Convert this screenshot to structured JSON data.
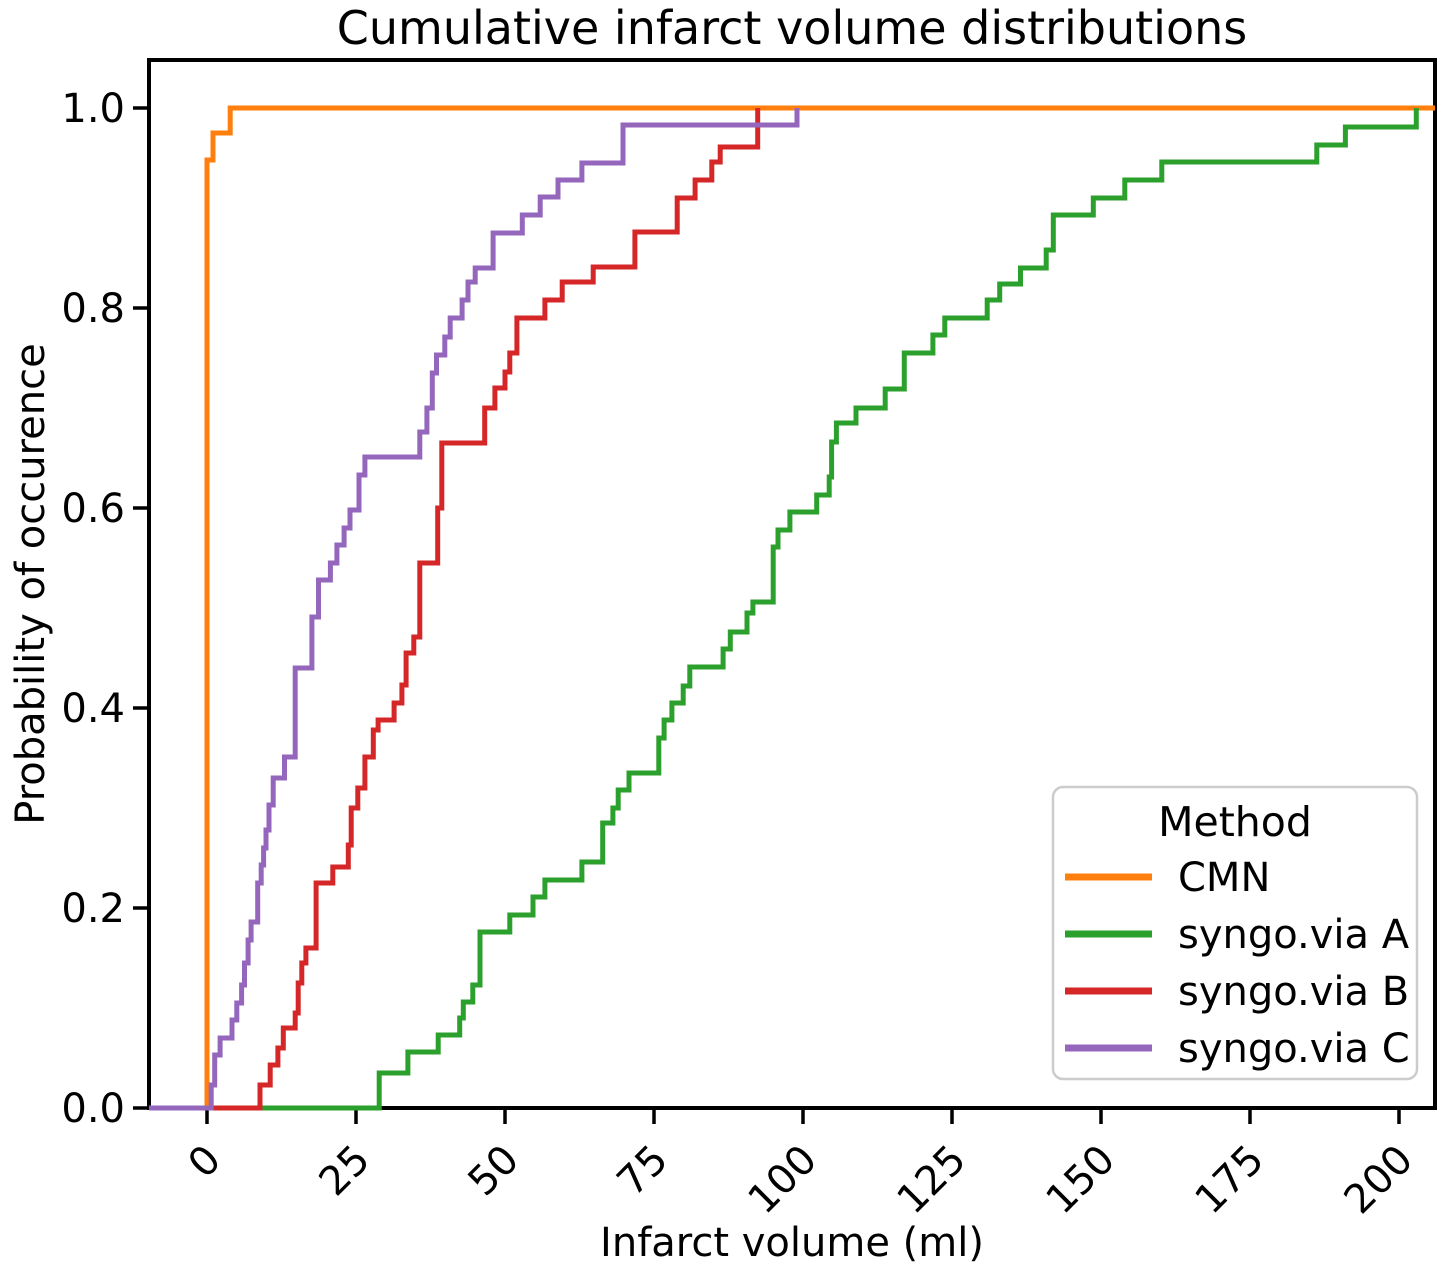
{
  "title": "Cumulative infarct volume distributions",
  "x_axis": {
    "label": "Infarct volume (ml)",
    "ticks": [
      0,
      25,
      50,
      75,
      100,
      125,
      150,
      175,
      200
    ]
  },
  "y_axis": {
    "label": "Probability of occurence",
    "ticks": [
      "0.0",
      "0.2",
      "0.4",
      "0.6",
      "0.8",
      "1.0"
    ]
  },
  "legend": {
    "title": "Method",
    "entries": [
      {
        "label": "CMN",
        "color": "#ff7f0e"
      },
      {
        "label": "syngo.via A",
        "color": "#2ca02c"
      },
      {
        "label": "syngo.via B",
        "color": "#d62728"
      },
      {
        "label": "syngo.via C",
        "color": "#9467bd"
      }
    ]
  },
  "chart_data": {
    "type": "line",
    "subtype": "ecdf-step",
    "title": "Cumulative infarct volume distributions",
    "xlabel": "Infarct volume (ml)",
    "ylabel": "Probability of occurence",
    "xlim": [
      -9.7,
      206
    ],
    "ylim": [
      0,
      1.048
    ],
    "grid": false,
    "legend_position": "lower right",
    "series": [
      {
        "name": "CMN",
        "color": "#ff7f0e",
        "extend_right": true,
        "steps": [
          [
            0,
            0.948
          ],
          [
            1.0,
            0.975
          ],
          [
            3.9,
            1.0
          ]
        ]
      },
      {
        "name": "syngo.via A",
        "color": "#2ca02c",
        "extend_right": false,
        "steps": [
          [
            28.9,
            0.035
          ],
          [
            33.7,
            0.056
          ],
          [
            38.8,
            0.073
          ],
          [
            42.4,
            0.09
          ],
          [
            43.0,
            0.106
          ],
          [
            44.6,
            0.123
          ],
          [
            45.8,
            0.176
          ],
          [
            50.8,
            0.193
          ],
          [
            54.7,
            0.211
          ],
          [
            56.7,
            0.228
          ],
          [
            62.9,
            0.246
          ],
          [
            66.4,
            0.285
          ],
          [
            68.1,
            0.3
          ],
          [
            69.0,
            0.318
          ],
          [
            70.8,
            0.335
          ],
          [
            75.8,
            0.37
          ],
          [
            76.7,
            0.388
          ],
          [
            78.0,
            0.405
          ],
          [
            79.9,
            0.422
          ],
          [
            81.0,
            0.441
          ],
          [
            86.6,
            0.459
          ],
          [
            87.8,
            0.476
          ],
          [
            90.6,
            0.495
          ],
          [
            91.6,
            0.506
          ],
          [
            95.0,
            0.561
          ],
          [
            95.8,
            0.578
          ],
          [
            97.8,
            0.596
          ],
          [
            102.3,
            0.613
          ],
          [
            104.4,
            0.631
          ],
          [
            104.8,
            0.666
          ],
          [
            105.6,
            0.685
          ],
          [
            108.9,
            0.7
          ],
          [
            113.8,
            0.719
          ],
          [
            117.0,
            0.755
          ],
          [
            121.8,
            0.773
          ],
          [
            123.8,
            0.79
          ],
          [
            130.9,
            0.808
          ],
          [
            133.0,
            0.824
          ],
          [
            136.5,
            0.84
          ],
          [
            140.8,
            0.858
          ],
          [
            142.0,
            0.893
          ],
          [
            148.7,
            0.91
          ],
          [
            154.0,
            0.928
          ],
          [
            160.2,
            0.946
          ],
          [
            186.2,
            0.963
          ],
          [
            191.0,
            0.981
          ],
          [
            202.9,
            1.0
          ]
        ]
      },
      {
        "name": "syngo.via B",
        "color": "#d62728",
        "extend_right": false,
        "steps": [
          [
            8.9,
            0.023
          ],
          [
            10.6,
            0.043
          ],
          [
            11.9,
            0.06
          ],
          [
            12.8,
            0.08
          ],
          [
            14.8,
            0.095
          ],
          [
            15.3,
            0.125
          ],
          [
            15.9,
            0.145
          ],
          [
            16.6,
            0.16
          ],
          [
            18.3,
            0.225
          ],
          [
            21.1,
            0.241
          ],
          [
            23.7,
            0.263
          ],
          [
            24.2,
            0.3
          ],
          [
            25.3,
            0.32
          ],
          [
            26.5,
            0.351
          ],
          [
            27.9,
            0.378
          ],
          [
            28.7,
            0.388
          ],
          [
            31.4,
            0.405
          ],
          [
            32.7,
            0.423
          ],
          [
            33.4,
            0.455
          ],
          [
            34.7,
            0.471
          ],
          [
            35.7,
            0.545
          ],
          [
            38.7,
            0.6
          ],
          [
            39.4,
            0.665
          ],
          [
            46.6,
            0.7
          ],
          [
            48.3,
            0.72
          ],
          [
            50.0,
            0.736
          ],
          [
            50.8,
            0.755
          ],
          [
            52.0,
            0.79
          ],
          [
            56.7,
            0.808
          ],
          [
            59.6,
            0.826
          ],
          [
            64.8,
            0.841
          ],
          [
            71.8,
            0.876
          ],
          [
            78.9,
            0.91
          ],
          [
            81.9,
            0.928
          ],
          [
            84.7,
            0.946
          ],
          [
            86.1,
            0.961
          ],
          [
            92.4,
            1.0
          ]
        ]
      },
      {
        "name": "syngo.via C",
        "color": "#9467bd",
        "extend_right": false,
        "steps": [
          [
            0.7,
            0.023
          ],
          [
            1.3,
            0.053
          ],
          [
            2.2,
            0.07
          ],
          [
            4.2,
            0.088
          ],
          [
            5.0,
            0.105
          ],
          [
            5.8,
            0.123
          ],
          [
            6.3,
            0.145
          ],
          [
            6.9,
            0.168
          ],
          [
            7.4,
            0.186
          ],
          [
            8.5,
            0.225
          ],
          [
            9.1,
            0.243
          ],
          [
            9.5,
            0.26
          ],
          [
            9.9,
            0.278
          ],
          [
            10.4,
            0.303
          ],
          [
            11.1,
            0.33
          ],
          [
            13.0,
            0.351
          ],
          [
            14.8,
            0.44
          ],
          [
            17.6,
            0.491
          ],
          [
            18.7,
            0.528
          ],
          [
            20.7,
            0.545
          ],
          [
            21.8,
            0.563
          ],
          [
            23.0,
            0.58
          ],
          [
            24.0,
            0.598
          ],
          [
            25.5,
            0.633
          ],
          [
            26.5,
            0.651
          ],
          [
            35.7,
            0.676
          ],
          [
            36.9,
            0.7
          ],
          [
            37.8,
            0.735
          ],
          [
            38.5,
            0.753
          ],
          [
            39.9,
            0.771
          ],
          [
            40.8,
            0.79
          ],
          [
            42.8,
            0.808
          ],
          [
            43.8,
            0.826
          ],
          [
            45.0,
            0.84
          ],
          [
            48.0,
            0.875
          ],
          [
            52.9,
            0.893
          ],
          [
            55.9,
            0.911
          ],
          [
            58.9,
            0.928
          ],
          [
            62.9,
            0.945
          ],
          [
            69.8,
            0.983
          ],
          [
            99.0,
            1.0
          ]
        ]
      }
    ]
  }
}
